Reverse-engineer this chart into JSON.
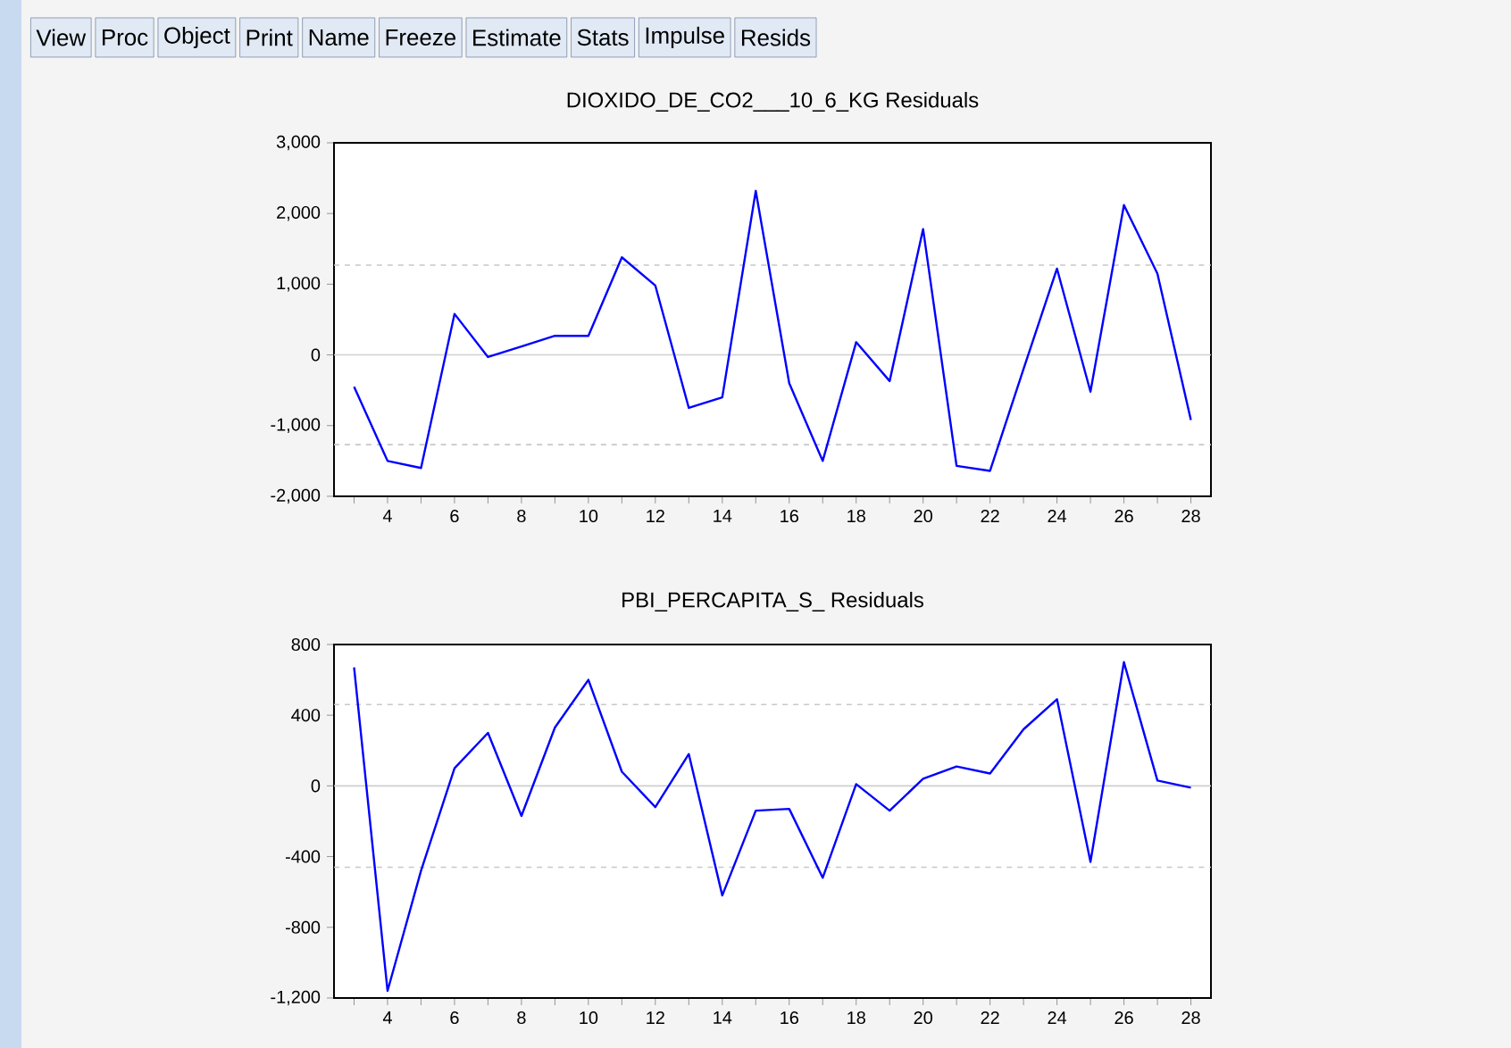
{
  "chart_data": [
    {
      "type": "other",
      "annotations": [
        "View",
        "Proc",
        "Object",
        "Print",
        "Name",
        "Freeze",
        "Estimate",
        "Stats",
        "Impulse",
        "Resids"
      ]
    },
    {
      "type": "line",
      "title": "DIOXIDO_DE_CO2___10_6_KG Residuals",
      "x": [
        3,
        4,
        5,
        6,
        7,
        8,
        9,
        10,
        11,
        12,
        13,
        14,
        15,
        16,
        17,
        18,
        19,
        20,
        21,
        22,
        23,
        24,
        25,
        26,
        27,
        28
      ],
      "series": [
        {
          "color": "#0000ff",
          "values": [
            -450,
            -1500,
            -1600,
            580,
            -30,
            120,
            270,
            270,
            1380,
            980,
            -750,
            -600,
            2320,
            -400,
            -1500,
            180,
            -370,
            1780,
            -1570,
            -1640,
            -200,
            1220,
            -520,
            2120,
            1150,
            -920
          ]
        }
      ],
      "xlim": [
        2.4,
        28.6
      ],
      "xticks": [
        {
          "value": 3,
          "label": null
        },
        4,
        {
          "value": 5,
          "label": null
        },
        6,
        {
          "value": 7,
          "label": null
        },
        8,
        {
          "value": 9,
          "label": null
        },
        10,
        {
          "value": 11,
          "label": null
        },
        12,
        {
          "value": 13,
          "label": null
        },
        14,
        {
          "value": 15,
          "label": null
        },
        16,
        {
          "value": 17,
          "label": null
        },
        18,
        {
          "value": 19,
          "label": null
        },
        20,
        {
          "value": 21,
          "label": null
        },
        22,
        {
          "value": 23,
          "label": null
        },
        24,
        {
          "value": 25,
          "label": null
        },
        26,
        {
          "value": 27,
          "label": null
        },
        28
      ],
      "ylim": [
        -2000,
        3000
      ],
      "yticks": [
        {
          "value": -2000,
          "label": "-2,000"
        },
        {
          "value": -1000,
          "label": "-1,000"
        },
        0,
        {
          "value": 1000,
          "label": "1,000"
        },
        {
          "value": 2000,
          "label": "2,000"
        },
        {
          "value": 3000,
          "label": "3,000"
        }
      ],
      "ref_lines": [
        {
          "axis": "y",
          "value": 1270,
          "color": "#c8c8c8",
          "line_style": "dashed"
        },
        {
          "axis": "y",
          "value": 0,
          "color": "#d0d0d0",
          "line_style": "solid"
        },
        {
          "axis": "y",
          "value": -1270,
          "color": "#c8c8c8",
          "line_style": "dashed"
        }
      ]
    },
    {
      "type": "line",
      "title": "PBI_PERCAPITA_S_ Residuals",
      "x": [
        3,
        4,
        5,
        6,
        7,
        8,
        9,
        10,
        11,
        12,
        13,
        14,
        15,
        16,
        17,
        18,
        19,
        20,
        21,
        22,
        23,
        24,
        25,
        26,
        27,
        28
      ],
      "series": [
        {
          "color": "#0000ff",
          "values": [
            670,
            -1160,
            -480,
            100,
            300,
            -170,
            330,
            600,
            80,
            -120,
            180,
            -620,
            -140,
            -130,
            -520,
            10,
            -140,
            40,
            110,
            70,
            320,
            490,
            -430,
            700,
            30,
            -10
          ]
        }
      ],
      "xlim": [
        2.4,
        28.6
      ],
      "xticks": [
        {
          "value": 3,
          "label": null
        },
        4,
        {
          "value": 5,
          "label": null
        },
        6,
        {
          "value": 7,
          "label": null
        },
        8,
        {
          "value": 9,
          "label": null
        },
        10,
        {
          "value": 11,
          "label": null
        },
        12,
        {
          "value": 13,
          "label": null
        },
        14,
        {
          "value": 15,
          "label": null
        },
        16,
        {
          "value": 17,
          "label": null
        },
        18,
        {
          "value": 19,
          "label": null
        },
        20,
        {
          "value": 21,
          "label": null
        },
        22,
        {
          "value": 23,
          "label": null
        },
        24,
        {
          "value": 25,
          "label": null
        },
        26,
        {
          "value": 27,
          "label": null
        },
        28
      ],
      "ylim": [
        -1200,
        800
      ],
      "yticks": [
        {
          "value": -1200,
          "label": "-1,200"
        },
        {
          "value": -800,
          "label": "-800"
        },
        {
          "value": -400,
          "label": "-400"
        },
        0,
        400,
        800
      ],
      "ref_lines": [
        {
          "axis": "y",
          "value": 460,
          "color": "#c8c8c8",
          "line_style": "dashed"
        },
        {
          "axis": "y",
          "value": 0,
          "color": "#d0d0d0",
          "line_style": "solid"
        },
        {
          "axis": "y",
          "value": -460,
          "color": "#c8c8c8",
          "line_style": "dashed"
        }
      ]
    }
  ]
}
